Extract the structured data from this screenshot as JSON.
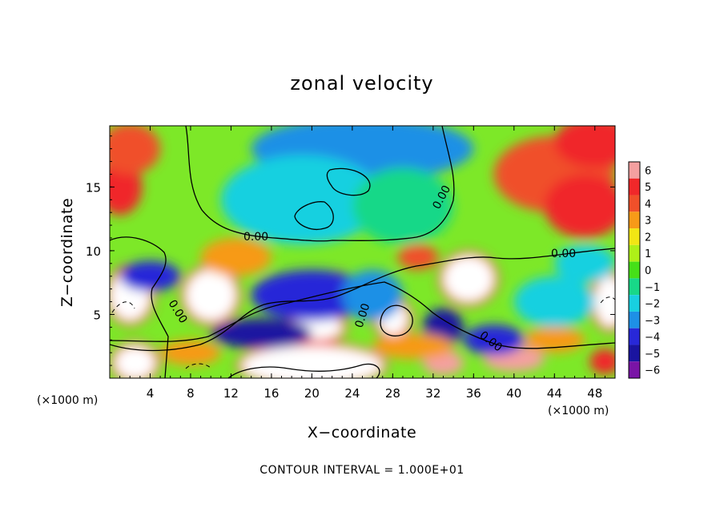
{
  "chart_data": {
    "type": "heatmap",
    "title": "zonal velocity",
    "xlabel": "X−coordinate",
    "ylabel": "Z−coordinate",
    "x_unit_left": "(×1000 m)",
    "x_unit_right": "(×1000 m)",
    "xlim": [
      0,
      50
    ],
    "ylim": [
      0,
      19.8
    ],
    "x_ticks": [
      4,
      8,
      12,
      16,
      20,
      24,
      28,
      32,
      36,
      40,
      44,
      48
    ],
    "x_tick_labels": [
      "4",
      "8",
      "12",
      "16",
      "20",
      "24",
      "28",
      "32",
      "36",
      "40",
      "44",
      "48"
    ],
    "y_ticks": [
      5,
      10,
      15
    ],
    "y_tick_labels": [
      "5",
      "10",
      "15"
    ],
    "colorbar": {
      "levels": [
        6,
        5,
        4,
        3,
        2,
        1,
        0,
        -1,
        -2,
        -3,
        -4,
        -5,
        -6
      ],
      "labels": [
        "6",
        "5",
        "4",
        "3",
        "2",
        "1",
        "0",
        "−1",
        "−2",
        "−3",
        "−4",
        "−5",
        "−6"
      ],
      "colors": [
        "#f4a0a0",
        "#f0282a",
        "#f0502a",
        "#f79a18",
        "#f2e614",
        "#aef018",
        "#46e018",
        "#18d888",
        "#18d0e0",
        "#1e90e6",
        "#2828d8",
        "#1a14a0",
        "#7a14a6"
      ]
    },
    "contour_labels": [
      "0.00",
      "0.00",
      "0.00",
      "0.00",
      "0.00",
      "0.00",
      "0.00"
    ],
    "field_blobs": [
      {
        "x": 25,
        "z": 18,
        "rx": 11,
        "rz": 2.5,
        "v": -3
      },
      {
        "x": 19,
        "z": 14,
        "rx": 8,
        "rz": 3.5,
        "v": -1.6
      },
      {
        "x": 29,
        "z": 13.5,
        "rx": 5,
        "rz": 3,
        "v": -1.3
      },
      {
        "x": 44,
        "z": 16,
        "rx": 6,
        "rz": 3,
        "v": 4
      },
      {
        "x": 47,
        "z": 13.5,
        "rx": 4,
        "rz": 2.5,
        "v": 4.8
      },
      {
        "x": 48,
        "z": 18.5,
        "rx": 4,
        "rz": 2,
        "v": 4.5
      },
      {
        "x": 1,
        "z": 15,
        "rx": 2.2,
        "rz": 2.2,
        "v": 4.8
      },
      {
        "x": 2,
        "z": 18,
        "rx": 3,
        "rz": 2,
        "v": 4
      },
      {
        "x": 10,
        "z": 6.5,
        "rx": 2.5,
        "rz": 2,
        "v": 7
      },
      {
        "x": 12.5,
        "z": 9.5,
        "rx": 3.5,
        "rz": 1.5,
        "v": 3
      },
      {
        "x": 35.5,
        "z": 7.8,
        "rx": 2.5,
        "rz": 1.8,
        "v": 7
      },
      {
        "x": 28,
        "z": 4.7,
        "rx": 1.5,
        "rz": 1.3,
        "v": 7
      },
      {
        "x": 2,
        "z": 6.5,
        "rx": 2,
        "rz": 2,
        "v": 7
      },
      {
        "x": 49.5,
        "z": 6,
        "rx": 1.5,
        "rz": 2,
        "v": 7
      },
      {
        "x": 2.5,
        "z": 1.2,
        "rx": 2,
        "rz": 1.3,
        "v": 7
      },
      {
        "x": 20,
        "z": 1,
        "rx": 7,
        "rz": 1.5,
        "v": 7
      },
      {
        "x": 33,
        "z": 1.2,
        "rx": 2,
        "rz": 1,
        "v": 6
      },
      {
        "x": 40,
        "z": 1.5,
        "rx": 3,
        "rz": 1,
        "v": 6
      },
      {
        "x": 49,
        "z": 1.3,
        "rx": 1.5,
        "rz": 1,
        "v": 5
      },
      {
        "x": 20.5,
        "z": 4,
        "rx": 2.5,
        "rz": 1,
        "v": 7
      },
      {
        "x": 22,
        "z": 7.2,
        "rx": 1.8,
        "rz": 0.8,
        "v": 7
      },
      {
        "x": 4,
        "z": 8,
        "rx": 3,
        "rz": 1.2,
        "v": -4.5
      },
      {
        "x": 20,
        "z": 6.5,
        "rx": 6,
        "rz": 2,
        "v": -4.5
      },
      {
        "x": 26,
        "z": 6.5,
        "rx": 3,
        "rz": 2,
        "v": -3.5
      },
      {
        "x": 15,
        "z": 3.5,
        "rx": 5,
        "rz": 1.2,
        "v": -5
      },
      {
        "x": 33,
        "z": 4,
        "rx": 2,
        "rz": 1.5,
        "v": -5
      },
      {
        "x": 38,
        "z": 3,
        "rx": 3,
        "rz": 1.2,
        "v": -4
      },
      {
        "x": 44,
        "z": 6,
        "rx": 4,
        "rz": 2,
        "v": -2.5
      },
      {
        "x": 47,
        "z": 9,
        "rx": 3,
        "rz": 1.5,
        "v": -2
      },
      {
        "x": 8,
        "z": 2,
        "rx": 3,
        "rz": 1,
        "v": 3
      },
      {
        "x": 30,
        "z": 2.5,
        "rx": 4,
        "rz": 1,
        "v": 2.5
      },
      {
        "x": 44,
        "z": 3,
        "rx": 3,
        "rz": 1,
        "v": 3
      },
      {
        "x": 30.5,
        "z": 9.5,
        "rx": 2,
        "rz": 1,
        "v": 4
      }
    ]
  },
  "footer": {
    "contour_interval": "CONTOUR INTERVAL = 1.000E+01"
  }
}
